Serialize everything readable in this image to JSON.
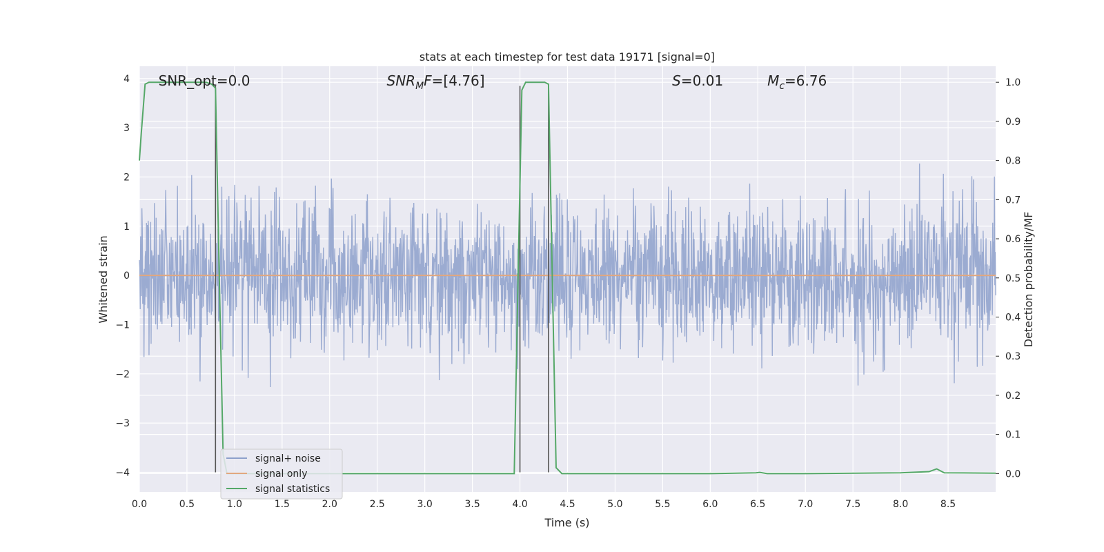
{
  "chart_data": {
    "type": "line",
    "title": "stats at each timestep for test data 19171 [signal=0]",
    "xlabel": "Time (s)",
    "ylabel_left": "Whitened strain",
    "ylabel_right": "Detection probability/MF",
    "xlim": [
      0.0,
      9.0
    ],
    "ylim_left": [
      -4.4,
      4.25
    ],
    "ylim_right": [
      -0.047,
      1.0409
    ],
    "x_ticks": [
      0.0,
      0.5,
      1.0,
      1.5,
      2.0,
      2.5,
      3.0,
      3.5,
      4.0,
      4.5,
      5.0,
      5.5,
      6.0,
      6.5,
      7.0,
      7.5,
      8.0,
      8.5
    ],
    "x_tick_labels": [
      "0.0",
      "0.5",
      "1.0",
      "1.5",
      "2.0",
      "2.5",
      "3.0",
      "3.5",
      "4.0",
      "4.5",
      "5.0",
      "5.5",
      "6.0",
      "6.5",
      "7.0",
      "7.5",
      "8.0",
      "8.5"
    ],
    "y_left_ticks": [
      -4,
      -3,
      -2,
      -1,
      0,
      1,
      2,
      3,
      4
    ],
    "y_left_tick_labels": [
      "−4",
      "−3",
      "−2",
      "−1",
      "0",
      "1",
      "2",
      "3",
      "4"
    ],
    "y_right_ticks": [
      0.0,
      0.1,
      0.2,
      0.3,
      0.4,
      0.5,
      0.6,
      0.7,
      0.8,
      0.9,
      1.0
    ],
    "y_right_tick_labels": [
      "0.0",
      "0.1",
      "0.2",
      "0.3",
      "0.4",
      "0.5",
      "0.6",
      "0.7",
      "0.8",
      "0.9",
      "1.0"
    ],
    "grid": true,
    "legend_position": "lower-left",
    "annotations": [
      {
        "id": "snr-opt",
        "text": "SNR_opt=0.0",
        "x": 0.2,
        "y": 3.97
      },
      {
        "id": "snr-mf",
        "text": "SNRMF=[4.76]",
        "x": 2.6,
        "y": 3.97
      },
      {
        "id": "stat-s",
        "text": "S=0.01",
        "x": 5.6,
        "y": 3.97
      },
      {
        "id": "mass-mc",
        "text": "Mc=6.76",
        "x": 6.6,
        "y": 3.97
      }
    ],
    "series": [
      {
        "name": "signal+ noise",
        "color": "#8da0cb",
        "axis": "left",
        "style": "noise",
        "sigma": 0.75,
        "samples": 2048
      },
      {
        "name": "signal only",
        "color": "#e1a77f",
        "axis": "left",
        "x": [
          0.0,
          9.0
        ],
        "y": [
          0.0,
          0.0
        ]
      },
      {
        "name": "signal statistics",
        "color": "#55a868",
        "axis": "right",
        "x": [
          0.0,
          0.02,
          0.06,
          0.1,
          0.15,
          0.3,
          0.5,
          0.7,
          0.76,
          0.8,
          0.84,
          0.88,
          0.92,
          1.0,
          2.0,
          3.0,
          3.94,
          3.98,
          4.02,
          4.06,
          4.1,
          4.2,
          4.26,
          4.3,
          4.34,
          4.38,
          4.44,
          5.0,
          6.0,
          6.48,
          6.52,
          6.6,
          7.0,
          8.0,
          8.3,
          8.38,
          8.46,
          9.0
        ],
        "y": [
          0.8,
          0.87,
          0.995,
          1.0,
          1.0,
          1.0,
          1.0,
          1.0,
          0.995,
          0.985,
          0.5,
          0.05,
          0.0,
          0.0,
          0.0,
          0.0,
          0.0,
          0.5,
          0.98,
          1.0,
          1.0,
          1.0,
          1.0,
          0.995,
          0.5,
          0.015,
          0.0,
          0.0,
          0.0,
          0.002,
          0.003,
          0.0,
          0.0,
          0.002,
          0.005,
          0.012,
          0.002,
          0.001
        ]
      }
    ],
    "vertical_markers": [
      {
        "x": 0.8,
        "y_top": 3.85,
        "y_bottom": -4.0
      },
      {
        "x": 4.0,
        "y_top": 3.85,
        "y_bottom": -4.0
      },
      {
        "x": 4.3,
        "y_top": 3.85,
        "y_bottom": -4.0
      }
    ]
  }
}
